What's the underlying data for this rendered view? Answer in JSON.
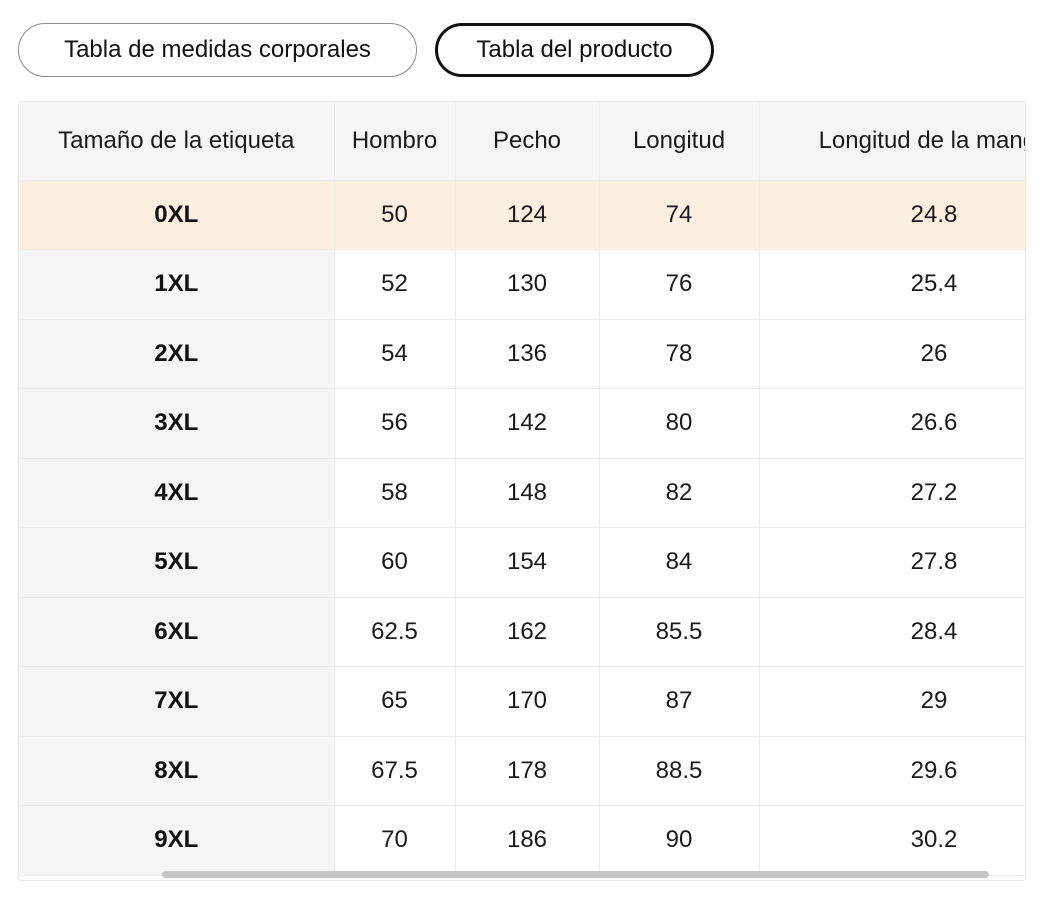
{
  "tabs": {
    "body_chart_label": "Tabla de medidas corporales",
    "product_chart_label": "Tabla del producto",
    "active": "product"
  },
  "table": {
    "columns": [
      "Tamaño de la etiqueta",
      "Hombro",
      "Pecho",
      "Longitud",
      "Longitud de la manga"
    ],
    "rows": [
      [
        "0XL",
        "50",
        "124",
        "74",
        "24.8"
      ],
      [
        "1XL",
        "52",
        "130",
        "76",
        "25.4"
      ],
      [
        "2XL",
        "54",
        "136",
        "78",
        "26"
      ],
      [
        "3XL",
        "56",
        "142",
        "80",
        "26.6"
      ],
      [
        "4XL",
        "58",
        "148",
        "82",
        "27.2"
      ],
      [
        "5XL",
        "60",
        "154",
        "84",
        "27.8"
      ],
      [
        "6XL",
        "62.5",
        "162",
        "85.5",
        "28.4"
      ],
      [
        "7XL",
        "65",
        "170",
        "87",
        "29"
      ],
      [
        "8XL",
        "67.5",
        "178",
        "88.5",
        "29.6"
      ],
      [
        "9XL",
        "70",
        "186",
        "90",
        "30.2"
      ]
    ],
    "highlighted_row": "0XL"
  },
  "colors": {
    "highlight_row": "#fdefe0",
    "header_bg": "#f5f5f5",
    "active_tab_border": "#111111",
    "scrollbar_thumb": "#c6c6c6"
  }
}
